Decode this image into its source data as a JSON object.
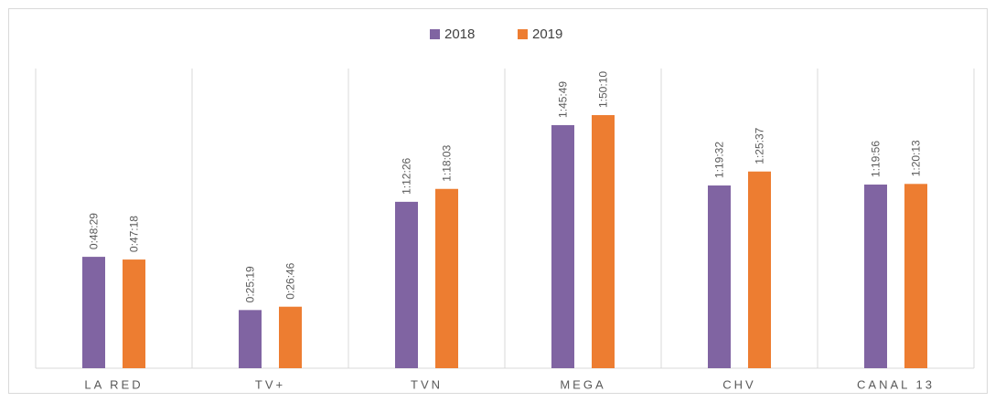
{
  "chart_data": {
    "type": "bar",
    "categories": [
      "LA RED",
      "TV+",
      "TVN",
      "MEGA",
      "CHV",
      "CANAL 13"
    ],
    "series": [
      {
        "name": "2018",
        "color": "#8064a2",
        "values": [
          2909,
          1519,
          4346,
          6349,
          4772,
          4796
        ],
        "value_labels": [
          "0:48:29",
          "0:25:19",
          "1:12:26",
          "1:45:49",
          "1:19:32",
          "1:19:56"
        ]
      },
      {
        "name": "2019",
        "color": "#ed7d31",
        "values": [
          2838,
          1606,
          4683,
          6610,
          5137,
          4813
        ],
        "value_labels": [
          "0:47:18",
          "0:26:46",
          "1:18:03",
          "1:50:10",
          "1:25:37",
          "1:20:13"
        ]
      }
    ],
    "legend": "top"
  }
}
